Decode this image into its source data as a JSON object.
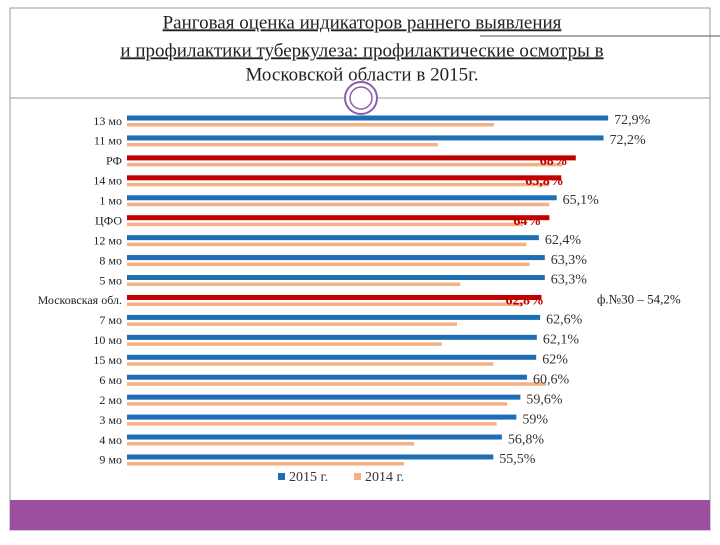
{
  "chart_data": {
    "type": "bar",
    "orientation": "horizontal",
    "title": [
      "Ранговая оценка индикаторов раннего выявления",
      "и профилактики туберкулеза: профилактические осмотры в",
      "Московской области в 2015г."
    ],
    "categories": [
      "13 мо",
      "11 мо",
      "РФ",
      "14 мо",
      "1 мо",
      "ЦФО",
      "12 мо",
      "8 мо",
      "5 мо",
      "Московская обл.",
      "7 мо",
      "10 мо",
      "15 мо",
      "6 мо",
      "2 мо",
      "3 мо",
      "4 мо",
      "9 мо"
    ],
    "series": [
      {
        "name": "2015 г.",
        "color": "#1f6db5",
        "colors": [
          "#1f6db5",
          "#1f6db5",
          "#c00000",
          "#c00000",
          "#1f6db5",
          "#c00000",
          "#1f6db5",
          "#1f6db5",
          "#1f6db5",
          "#c00000",
          "#1f6db5",
          "#1f6db5",
          "#1f6db5",
          "#1f6db5",
          "#1f6db5",
          "#1f6db5",
          "#1f6db5",
          "#1f6db5"
        ],
        "values": [
          72.9,
          72.2,
          68,
          65.8,
          65.1,
          64,
          62.4,
          63.3,
          63.3,
          62.8,
          62.6,
          62.1,
          62,
          60.6,
          59.6,
          59,
          56.8,
          55.5
        ],
        "value_labels": [
          "72,9%",
          "72,2%",
          "68%",
          "65,8%",
          "65,1%",
          "64%",
          "62,4%",
          "63,3%",
          "63,3%",
          "62,8%",
          "62,6%",
          "62,1%",
          "62%",
          "60,6%",
          "59,6%",
          "59%",
          "56,8%",
          "55,5%"
        ]
      },
      {
        "name": "2014 г.",
        "color": "#f4b183",
        "values": [
          55.6,
          47.1,
          66,
          64,
          64,
          60,
          60.5,
          61,
          50.5,
          60,
          50,
          47.7,
          55.5,
          63.5,
          57.6,
          56,
          43.5,
          42
        ]
      }
    ],
    "annotation": "ф.№30 – 54,2%"
  }
}
